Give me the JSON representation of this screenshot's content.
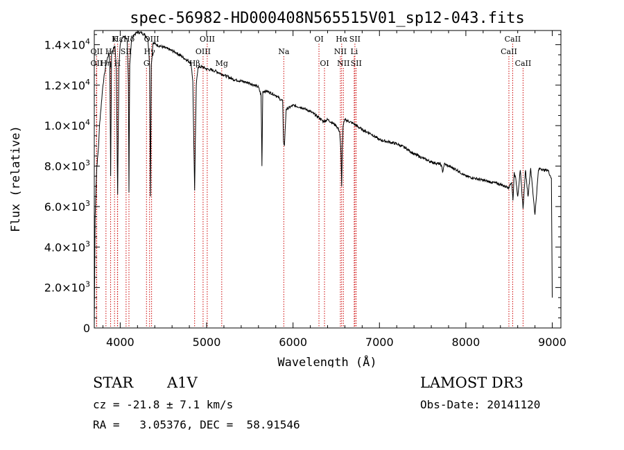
{
  "chart_data": {
    "type": "line",
    "title": "spec-56982-HD000408N565515V01_sp12-043.fits",
    "xlabel": "Wavelength (Å)",
    "ylabel": "Flux (relative)",
    "xlim": [
      3700,
      9100
    ],
    "ylim": [
      0,
      14700
    ],
    "x_ticks": [
      4000,
      5000,
      6000,
      7000,
      8000,
      9000
    ],
    "x_tick_labels": [
      "4000",
      "5000",
      "6000",
      "7000",
      "8000",
      "9000"
    ],
    "y_ticks": [
      {
        "value": 0,
        "mant": "0",
        "exp": ""
      },
      {
        "value": 2000,
        "mant": "2.0×10",
        "exp": "3"
      },
      {
        "value": 4000,
        "mant": "4.0×10",
        "exp": "3"
      },
      {
        "value": 6000,
        "mant": "6.0×10",
        "exp": "3"
      },
      {
        "value": 8000,
        "mant": "8.0×10",
        "exp": "3"
      },
      {
        "value": 10000,
        "mant": "1.0×10",
        "exp": "4"
      },
      {
        "value": 12000,
        "mant": "1.2×10",
        "exp": "4"
      },
      {
        "value": 14000,
        "mant": "1.4×10",
        "exp": "4"
      }
    ],
    "series": [
      {
        "name": "spectrum",
        "x": [
          3700,
          3710,
          3720,
          3730,
          3740,
          3750,
          3760,
          3770,
          3780,
          3790,
          3800,
          3810,
          3820,
          3835,
          3850,
          3870,
          3880,
          3889,
          3900,
          3920,
          3940,
          3955,
          3970,
          3985,
          4000,
          4020,
          4040,
          4060,
          4080,
          4095,
          4101,
          4110,
          4130,
          4160,
          4200,
          4240,
          4280,
          4300,
          4320,
          4340,
          4350,
          4360,
          4380,
          4420,
          4480,
          4550,
          4650,
          4750,
          4820,
          4840,
          4861,
          4880,
          4900,
          4950,
          5000,
          5100,
          5200,
          5300,
          5400,
          5500,
          5600,
          5630,
          5640,
          5650,
          5700,
          5800,
          5880,
          5890,
          5900,
          5920,
          6000,
          6100,
          6200,
          6300,
          6350,
          6400,
          6500,
          6540,
          6555,
          6563,
          6570,
          6580,
          6600,
          6700,
          6800,
          6900,
          7000,
          7100,
          7200,
          7300,
          7400,
          7500,
          7600,
          7700,
          7720,
          7730,
          7750,
          7800,
          7900,
          8000,
          8100,
          8200,
          8300,
          8400,
          8450,
          8480,
          8500,
          8510,
          8530,
          8545,
          8560,
          8580,
          8600,
          8630,
          8662,
          8690,
          8720,
          8750,
          8800,
          8840,
          8860,
          8900,
          8950,
          8990,
          9000
        ],
        "y": [
          100,
          5500,
          7000,
          8000,
          8500,
          9000,
          10000,
          10500,
          11000,
          11500,
          12000,
          12300,
          12600,
          13000,
          13300,
          13600,
          13000,
          7500,
          13600,
          13800,
          13900,
          12800,
          6600,
          13000,
          14000,
          14300,
          14400,
          14400,
          14200,
          12000,
          6700,
          13000,
          14200,
          14500,
          14600,
          14600,
          14500,
          14400,
          14300,
          13000,
          6500,
          13000,
          14100,
          14000,
          13900,
          13800,
          13600,
          13300,
          13100,
          12200,
          6800,
          12000,
          12900,
          12900,
          12800,
          12700,
          12500,
          12300,
          12200,
          12100,
          11900,
          11500,
          8000,
          11700,
          11700,
          11500,
          11200,
          9200,
          9000,
          10800,
          11000,
          10900,
          10700,
          10400,
          10200,
          10300,
          10000,
          9700,
          8600,
          7000,
          9000,
          10000,
          10300,
          10100,
          9800,
          9600,
          9300,
          9200,
          9100,
          8900,
          8600,
          8400,
          8200,
          8100,
          8000,
          7700,
          8100,
          8000,
          7800,
          7500,
          7400,
          7300,
          7200,
          7100,
          7000,
          7000,
          6900,
          7100,
          7200,
          6300,
          7700,
          7300,
          6500,
          7800,
          5900,
          7800,
          6500,
          7900,
          5600,
          7800,
          7900,
          7800,
          7800,
          7400,
          1500
        ]
      }
    ],
    "line_markers": [
      {
        "label": "Hδ",
        "x": 4101,
        "row": 1
      },
      {
        "label": "Hε",
        "x": 3970,
        "row": 1
      },
      {
        "label": "K",
        "x": 3934,
        "row": 1
      },
      {
        "label": "OII",
        "x": 3727,
        "row": 2
      },
      {
        "label": "Hε",
        "x": 3889,
        "row": 2
      },
      {
        "label": "SII",
        "x": 4068,
        "row": 2
      },
      {
        "label": "OII",
        "x": 3727,
        "row": 3
      },
      {
        "label": "Hη",
        "x": 3835,
        "row": 3
      },
      {
        "label": "H",
        "x": 3968,
        "row": 3
      },
      {
        "label": "OIII",
        "x": 4363,
        "row": 1
      },
      {
        "label": "Hγ",
        "x": 4340,
        "row": 2
      },
      {
        "label": "G",
        "x": 4304,
        "row": 3
      },
      {
        "label": "OIII",
        "x": 5007,
        "row": 1
      },
      {
        "label": "OIII",
        "x": 4959,
        "row": 2
      },
      {
        "label": "Hβ",
        "x": 4861,
        "row": 3
      },
      {
        "label": "Mg",
        "x": 5175,
        "row": 3
      },
      {
        "label": "Na",
        "x": 5893,
        "row": 2
      },
      {
        "label": "OI",
        "x": 6300,
        "row": 1
      },
      {
        "label": "OI",
        "x": 6364,
        "row": 3
      },
      {
        "label": "Hα",
        "x": 6563,
        "row": 1
      },
      {
        "label": "SII",
        "x": 6716,
        "row": 1
      },
      {
        "label": "NII",
        "x": 6548,
        "row": 2
      },
      {
        "label": "Li",
        "x": 6708,
        "row": 2
      },
      {
        "label": "NII",
        "x": 6583,
        "row": 3
      },
      {
        "label": "SII",
        "x": 6731,
        "row": 3
      },
      {
        "label": "CaII",
        "x": 8542,
        "row": 1
      },
      {
        "label": "CaII",
        "x": 8498,
        "row": 2
      },
      {
        "label": "CaII",
        "x": 8662,
        "row": 3
      }
    ],
    "marker_color": "#cc0000"
  },
  "info": {
    "class_label": "STAR",
    "subclass": "A1V",
    "cz": "cz = -21.8 ± 7.1 km/s",
    "radec": "RA =   3.05376, DEC =  58.91546",
    "survey": "LAMOST DR3",
    "obs_date": "Obs-Date: 20141120"
  }
}
